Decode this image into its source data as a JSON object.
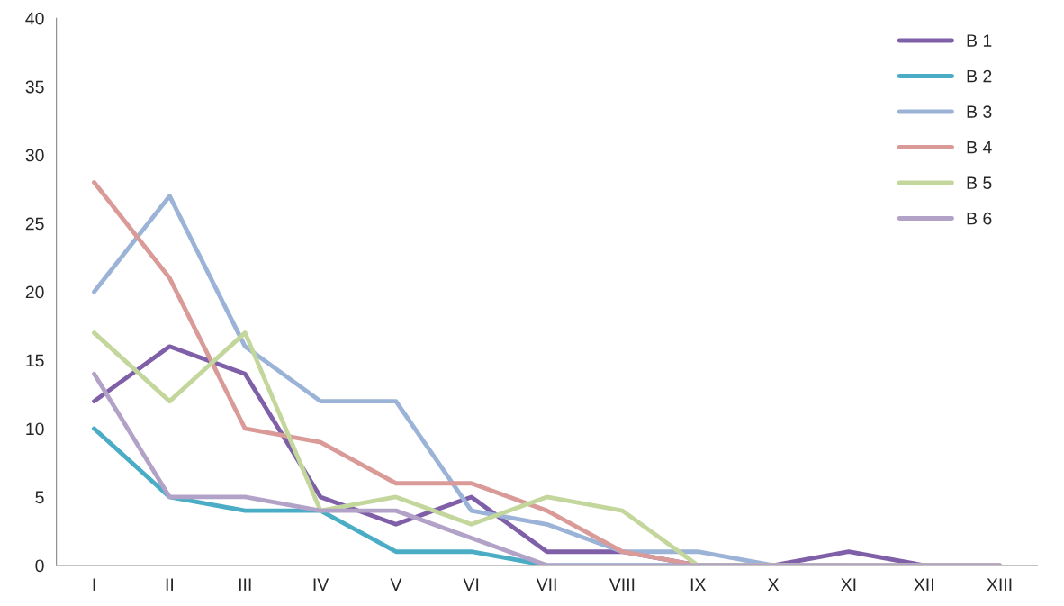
{
  "chart_data": {
    "type": "line",
    "categories": [
      "I",
      "II",
      "III",
      "IV",
      "V",
      "VI",
      "VII",
      "VIII",
      "IX",
      "X",
      "XI",
      "XII",
      "XIII"
    ],
    "series": [
      {
        "name": "B 1",
        "color": "#7f60a8",
        "values": [
          12,
          16,
          14,
          5,
          3,
          5,
          1,
          1,
          0,
          0,
          1,
          0,
          0
        ]
      },
      {
        "name": "B 2",
        "color": "#4bacc6",
        "values": [
          10,
          5,
          4,
          4,
          1,
          1,
          0,
          0,
          0,
          0,
          0,
          null,
          null
        ]
      },
      {
        "name": "B 3",
        "color": "#9bb3d7",
        "values": [
          20,
          27,
          16,
          12,
          12,
          4,
          3,
          1,
          1,
          0,
          0,
          0,
          0
        ]
      },
      {
        "name": "B 4",
        "color": "#d99a98",
        "values": [
          28,
          21,
          10,
          9,
          6,
          6,
          4,
          1,
          0,
          0,
          0,
          0,
          0
        ]
      },
      {
        "name": "B 5",
        "color": "#c3d69b",
        "values": [
          17,
          12,
          17,
          4,
          5,
          3,
          5,
          4,
          0,
          0,
          0,
          0,
          0
        ]
      },
      {
        "name": "B 6",
        "color": "#b3a2c7",
        "values": [
          14,
          5,
          5,
          4,
          4,
          2,
          0,
          0,
          0,
          0,
          0,
          0,
          0
        ]
      }
    ],
    "ylim": [
      0,
      40
    ],
    "yticks": [
      0,
      5,
      10,
      15,
      20,
      25,
      30,
      35,
      40
    ],
    "grid": false,
    "legend": "top right",
    "marker": "none",
    "line_style": "solid"
  }
}
